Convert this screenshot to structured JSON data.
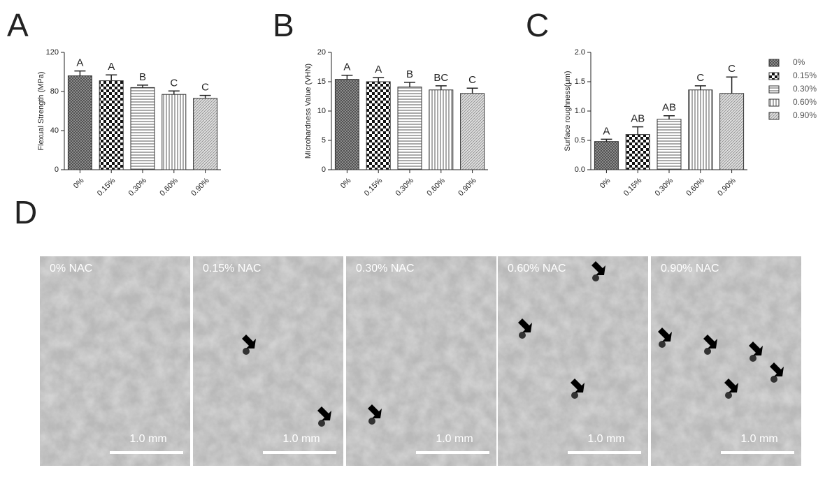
{
  "chart_data": [
    {
      "type": "bar",
      "panel": "A",
      "y_label": "Flexual Strength (MPa)",
      "categories": [
        "0%",
        "0.15%",
        "0.30%",
        "0.60%",
        "0.90%"
      ],
      "values": [
        96,
        91,
        84,
        77,
        73
      ],
      "errors": [
        5,
        6,
        2.5,
        3.5,
        3
      ],
      "annotations": [
        "A",
        "A",
        "B",
        "C",
        "C"
      ],
      "ylim": [
        0,
        120
      ],
      "yticks": [
        0,
        40,
        80,
        120
      ]
    },
    {
      "type": "bar",
      "panel": "B",
      "y_label": "Microhardness Value (VHN)",
      "categories": [
        "0%",
        "0.15%",
        "0.30%",
        "0.60%",
        "0.90%"
      ],
      "values": [
        15.4,
        15.0,
        14.1,
        13.6,
        13.0
      ],
      "errors": [
        0.7,
        0.7,
        0.8,
        0.7,
        0.9
      ],
      "annotations": [
        "A",
        "A",
        "B",
        "BC",
        "C"
      ],
      "ylim": [
        0,
        20
      ],
      "yticks": [
        0,
        5,
        10,
        15,
        20
      ]
    },
    {
      "type": "bar",
      "panel": "C",
      "y_label": "Surface roughness(μm)",
      "categories": [
        "0%",
        "0.15%",
        "0.30%",
        "0.60%",
        "0.90%"
      ],
      "values": [
        0.48,
        0.6,
        0.86,
        1.36,
        1.3
      ],
      "errors": [
        0.04,
        0.13,
        0.06,
        0.07,
        0.28
      ],
      "annotations": [
        "A",
        "AB",
        "AB",
        "C",
        "C"
      ],
      "ylim": [
        0,
        2
      ],
      "yticks": [
        {
          "value": 0,
          "label": "0.0"
        },
        0.5,
        {
          "value": 1,
          "label": "1.0"
        },
        1.5,
        {
          "value": 2,
          "label": "2.0"
        }
      ],
      "legend": "right"
    }
  ],
  "figure_d": {
    "panel": "D",
    "items": [
      {
        "label": "0% NAC",
        "scale_bar": "1.0 mm"
      },
      {
        "label": "0.15% NAC",
        "scale_bar": "1.0 mm"
      },
      {
        "label": "0.30% NAC",
        "scale_bar": "1.0 mm"
      },
      {
        "label": "0.60% NAC",
        "scale_bar": "1.0 mm"
      },
      {
        "label": "0.90% NAC",
        "scale_bar": "1.0 mm"
      }
    ]
  }
}
